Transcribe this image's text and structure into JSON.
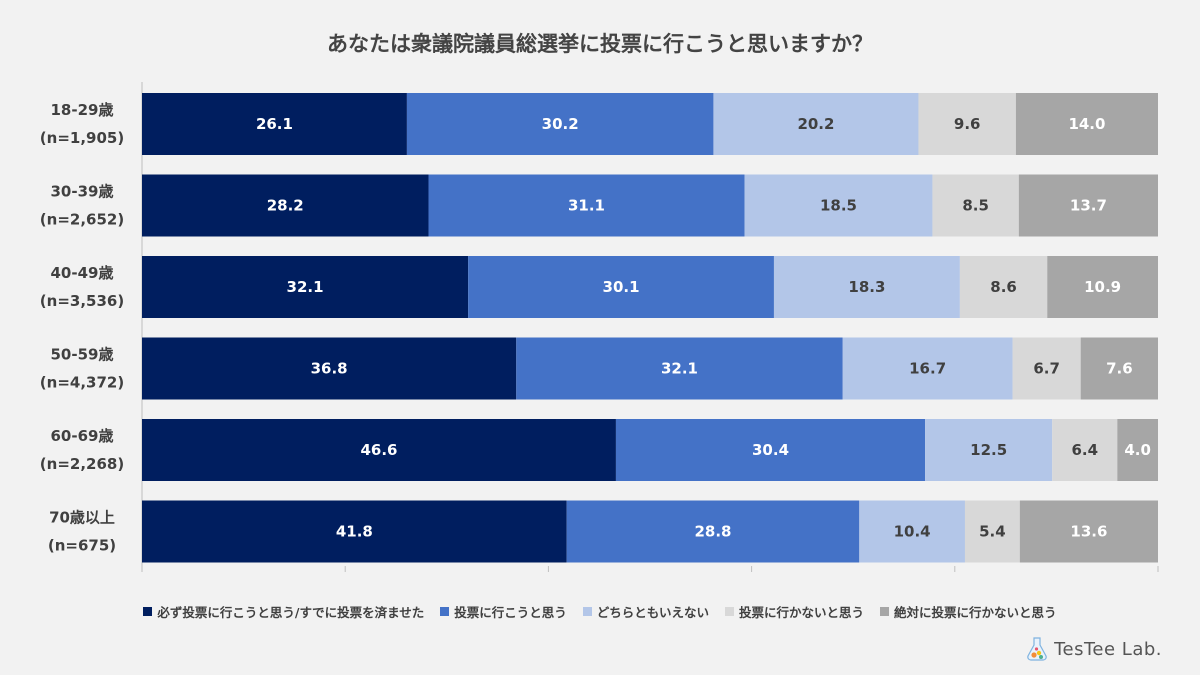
{
  "chart_data": {
    "type": "bar",
    "orientation": "horizontal-stacked-100",
    "title": "あなたは衆議院議員総選挙に投票に行こうと思いますか？",
    "categories": [
      {
        "label": "18-29歳",
        "sub": "(n=1,905)"
      },
      {
        "label": "30-39歳",
        "sub": "(n=2,652)"
      },
      {
        "label": "40-49歳",
        "sub": "(n=3,536)"
      },
      {
        "label": "50-59歳",
        "sub": "(n=4,372)"
      },
      {
        "label": "60-69歳",
        "sub": "(n=2,268)"
      },
      {
        "label": "70歳以上",
        "sub": "(n=675)"
      }
    ],
    "series": [
      {
        "name": "必ず投票に行こうと思う/すでに投票を済ませた",
        "color": "#001e5f",
        "text_color": "#ffffff",
        "values": [
          26.1,
          28.2,
          32.1,
          36.8,
          46.6,
          41.8
        ]
      },
      {
        "name": "投票に行こうと思う",
        "color": "#4472c7",
        "text_color": "#ffffff",
        "values": [
          30.2,
          31.1,
          30.1,
          32.1,
          30.4,
          28.8
        ]
      },
      {
        "name": "どちらともいえない",
        "color": "#b3c6e8",
        "text_color": "#404040",
        "values": [
          20.2,
          18.5,
          18.3,
          16.7,
          12.5,
          10.4
        ]
      },
      {
        "name": "投票に行かないと思う",
        "color": "#d8d8d8",
        "text_color": "#404040",
        "values": [
          9.6,
          8.5,
          8.6,
          6.7,
          6.4,
          5.4
        ]
      },
      {
        "name": "絶対に投票に行かないと思う",
        "color": "#a6a6a6",
        "text_color": "#ffffff",
        "values": [
          14.0,
          13.7,
          10.9,
          7.6,
          4.0,
          13.6
        ]
      }
    ],
    "xlim": [
      0,
      100
    ],
    "legend_position": "bottom",
    "grid": false
  },
  "brand": {
    "name": "TesTee Lab."
  }
}
